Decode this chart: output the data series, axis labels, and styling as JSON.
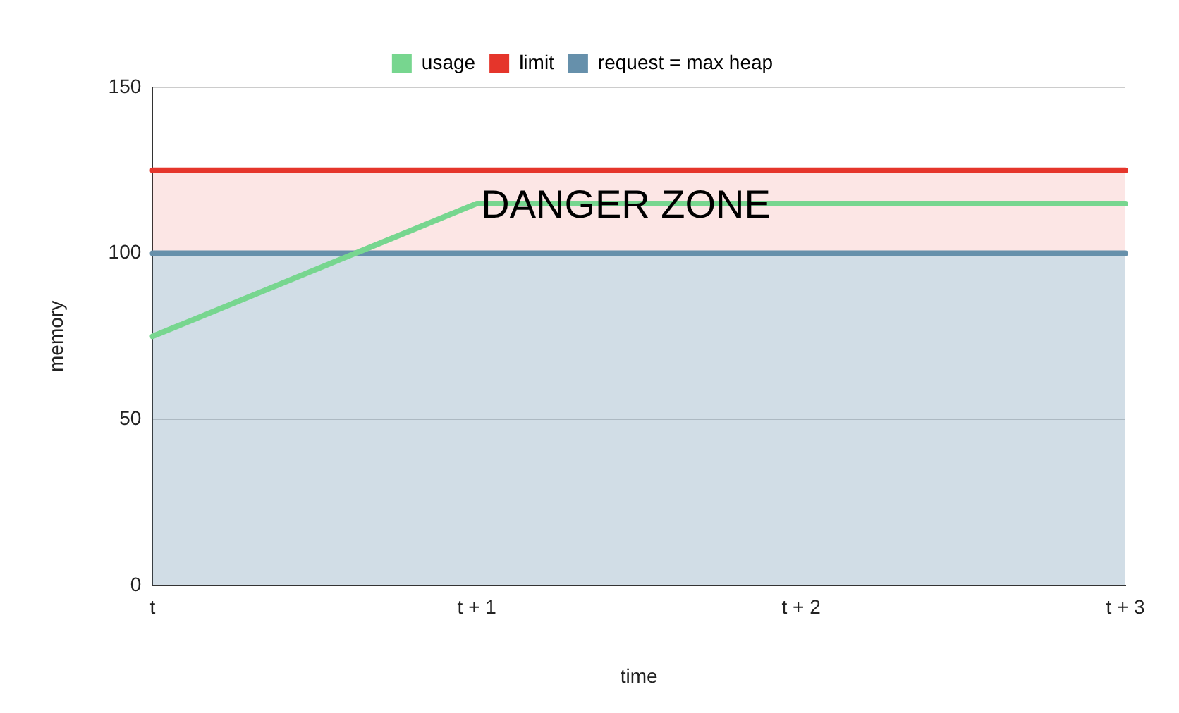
{
  "chart_data": {
    "type": "line",
    "xlabel": "time",
    "ylabel": "memory",
    "categories": [
      "t",
      "t + 1",
      "t + 2",
      "t + 3"
    ],
    "series": [
      {
        "name": "usage",
        "color": "#77d68f",
        "values": [
          75,
          115,
          115,
          115
        ]
      },
      {
        "name": "limit",
        "type": "area",
        "color": "#e5352b",
        "values": [
          125,
          125,
          125,
          125
        ]
      },
      {
        "name": "request = max heap",
        "type": "area",
        "color": "#6690ab",
        "values": [
          100,
          100,
          100,
          100
        ]
      }
    ],
    "ylim": [
      0,
      150
    ],
    "yticks": [
      0,
      50,
      100,
      150
    ],
    "grid": "y",
    "legend": "top",
    "marker": "none",
    "line_style": "solid",
    "annotations": [
      {
        "text": "DANGER ZONE",
        "x": "t + 1",
        "y": 114
      }
    ]
  }
}
